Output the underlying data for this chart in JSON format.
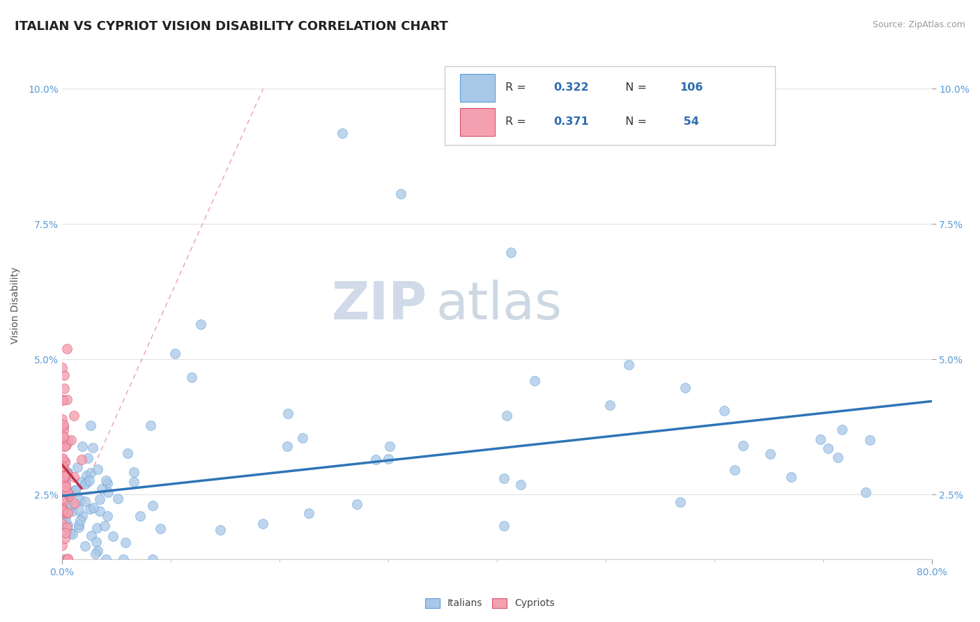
{
  "title": "ITALIAN VS CYPRIOT VISION DISABILITY CORRELATION CHART",
  "source_text": "Source: ZipAtlas.com",
  "ylabel": "Vision Disability",
  "xmin": 0.0,
  "xmax": 0.8,
  "ymin": 0.013,
  "ymax": 0.107,
  "italian_face_color": "#A8C8E8",
  "italian_edge_color": "#5B9BD5",
  "cypriot_face_color": "#F4A0B0",
  "cypriot_edge_color": "#D9506A",
  "italian_line_color": "#2E75B6",
  "cypriot_line_color": "#C0304A",
  "diagonal_color": "#E8A0B0",
  "ytick_shown": [
    0.025,
    0.05,
    0.075,
    0.1
  ],
  "ytick_color": "#5B9BD5",
  "xtick_color": "#5B9BD5",
  "watermark_zip": "ZIP",
  "watermark_atlas": "atlas",
  "watermark_color_zip": "#C0CCE0",
  "watermark_color_atlas": "#B8C8D8",
  "legend_text_color": "#333333",
  "legend_number_color": "#2E6BB0",
  "title_fontsize": 13,
  "axis_label_fontsize": 10,
  "tick_fontsize": 10,
  "source_fontsize": 9
}
